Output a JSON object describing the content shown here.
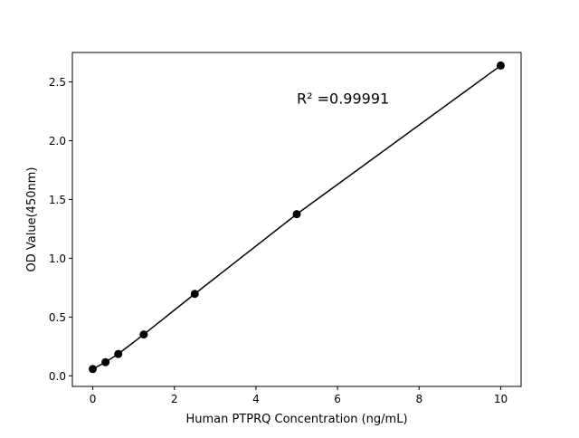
{
  "chart_data": {
    "type": "line",
    "title": "",
    "xlabel": "Human PTPRQ Concentration (ng/mL)",
    "ylabel": "OD Value(450nm)",
    "xlim": [
      -0.5,
      10.5
    ],
    "ylim": [
      -0.09,
      2.75
    ],
    "x_ticks": [
      0,
      2,
      4,
      6,
      8,
      10
    ],
    "x_tick_labels": [
      "0",
      "2",
      "4",
      "6",
      "8",
      "10"
    ],
    "y_ticks": [
      0.0,
      0.5,
      1.0,
      1.5,
      2.0,
      2.5
    ],
    "y_tick_labels": [
      "0.0",
      "0.5",
      "1.0",
      "1.5",
      "2.0",
      "2.5"
    ],
    "grid": false,
    "series": [
      {
        "x": [
          0,
          0.3125,
          0.625,
          1.25,
          2.5,
          5,
          10
        ],
        "y": [
          0.058,
          0.116,
          0.186,
          0.352,
          0.697,
          1.375,
          2.639
        ],
        "color": "#000000",
        "marker": "circle"
      }
    ],
    "annotations": [
      {
        "text": "R² =0.99991",
        "x": 5,
        "y": 2.36
      }
    ]
  }
}
